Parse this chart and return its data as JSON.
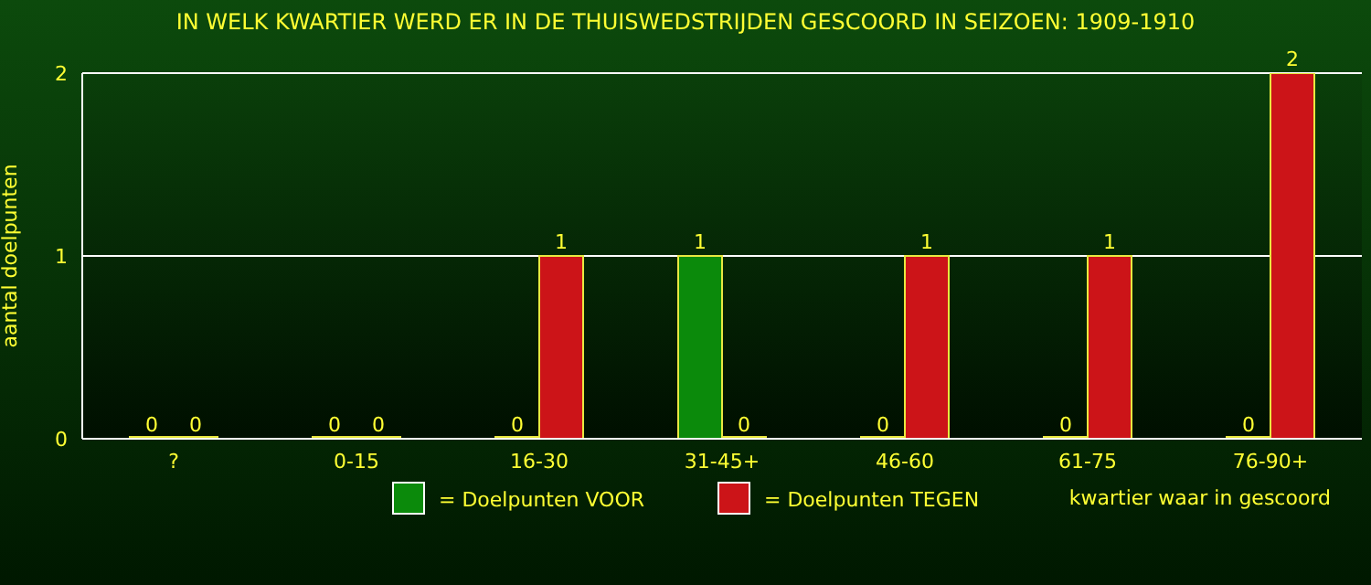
{
  "chart_data": {
    "type": "bar",
    "title": "IN WELK KWARTIER WERD ER IN DE THUISWEDSTRIJDEN GESCOORD IN SEIZOEN: 1909-1910",
    "xlabel": "kwartier waar in gescoord",
    "ylabel": "aantal doelpunten",
    "categories": [
      "?",
      "0-15",
      "16-30",
      "31-45+",
      "46-60",
      "61-75",
      "76-90+"
    ],
    "series": [
      {
        "name": "= Doelpunten VOOR",
        "color": "#0b8a0b",
        "values": [
          0,
          0,
          0,
          1,
          0,
          0,
          0
        ]
      },
      {
        "name": "= Doelpunten TEGEN",
        "color": "#cc1418",
        "values": [
          0,
          0,
          1,
          0,
          1,
          1,
          2
        ]
      }
    ],
    "ylim": [
      0,
      2
    ],
    "yticks": [
      0,
      1,
      2
    ],
    "grid": "y",
    "legend": "bottom",
    "data_labels": true
  }
}
